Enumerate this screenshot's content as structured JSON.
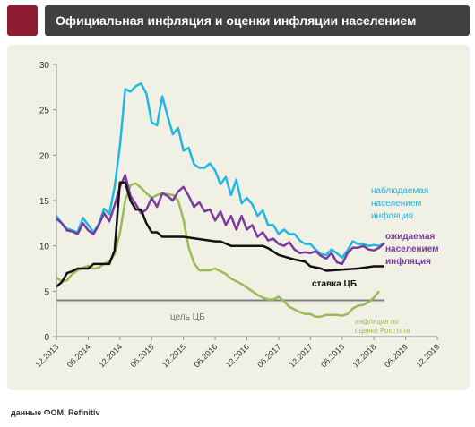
{
  "header": {
    "title": "Официальная инфляция и оценки инфляции населением"
  },
  "source": "данные ФОМ, Refinitiv",
  "colors": {
    "accent": "#8e1b2f",
    "header_bg": "#404040",
    "panel_bg": "#f1f0e4",
    "observed": "#22b6e0",
    "expected": "#7b3a9c",
    "rate": "#111111",
    "rosstat": "#9bbb59",
    "target": "#808080"
  },
  "chart_data": {
    "type": "line",
    "title": "Официальная инфляция и оценки инфляции населением",
    "ylim": [
      0,
      30
    ],
    "yticks": [
      0,
      5,
      10,
      15,
      20,
      25,
      30
    ],
    "xlim": [
      "2013-12",
      "2019-12"
    ],
    "xticks": [
      "12.2013",
      "06.2014",
      "12.2014",
      "06.2015",
      "12.2015",
      "06.2016",
      "12.2016",
      "06.2017",
      "12.2017",
      "06.2018",
      "12.2018",
      "06.2019",
      "12.2019"
    ],
    "grid": false,
    "series": [
      {
        "name": "наблюдаемая населением инфляция",
        "label": [
          "наблюдаемая",
          "населением",
          "инфляция"
        ],
        "color": "#22b6e0",
        "points": [
          [
            "2013-12",
            13.3
          ],
          [
            "2014-01",
            12.5
          ],
          [
            "2014-02",
            11.9
          ],
          [
            "2014-03",
            11.7
          ],
          [
            "2014-04",
            11.5
          ],
          [
            "2014-05",
            13.1
          ],
          [
            "2014-06",
            12.3
          ],
          [
            "2014-07",
            11.5
          ],
          [
            "2014-08",
            12.4
          ],
          [
            "2014-09",
            14.1
          ],
          [
            "2014-10",
            13.5
          ],
          [
            "2014-11",
            16.5
          ],
          [
            "2014-12",
            21.0
          ],
          [
            "2015-01",
            27.3
          ],
          [
            "2015-02",
            27.0
          ],
          [
            "2015-03",
            27.6
          ],
          [
            "2015-04",
            27.9
          ],
          [
            "2015-05",
            26.8
          ],
          [
            "2015-06",
            23.6
          ],
          [
            "2015-07",
            23.3
          ],
          [
            "2015-08",
            26.5
          ],
          [
            "2015-09",
            24.3
          ],
          [
            "2015-10",
            22.3
          ],
          [
            "2015-11",
            23.0
          ],
          [
            "2015-12",
            20.5
          ],
          [
            "2016-01",
            20.8
          ],
          [
            "2016-02",
            19.0
          ],
          [
            "2016-03",
            18.6
          ],
          [
            "2016-04",
            18.6
          ],
          [
            "2016-05",
            19.1
          ],
          [
            "2016-06",
            18.3
          ],
          [
            "2016-07",
            16.8
          ],
          [
            "2016-08",
            17.6
          ],
          [
            "2016-09",
            15.6
          ],
          [
            "2016-10",
            17.3
          ],
          [
            "2016-11",
            14.7
          ],
          [
            "2016-12",
            15.3
          ],
          [
            "2017-01",
            14.6
          ],
          [
            "2017-02",
            13.3
          ],
          [
            "2017-03",
            13.9
          ],
          [
            "2017-04",
            12.3
          ],
          [
            "2017-05",
            12.3
          ],
          [
            "2017-06",
            11.3
          ],
          [
            "2017-07",
            11.8
          ],
          [
            "2017-08",
            11.3
          ],
          [
            "2017-09",
            11.3
          ],
          [
            "2017-10",
            10.6
          ],
          [
            "2017-11",
            10.2
          ],
          [
            "2017-12",
            10.2
          ],
          [
            "2018-01",
            9.6
          ],
          [
            "2018-02",
            9.1
          ],
          [
            "2018-03",
            9.0
          ],
          [
            "2018-04",
            9.6
          ],
          [
            "2018-05",
            9.2
          ],
          [
            "2018-06",
            8.7
          ],
          [
            "2018-07",
            9.5
          ],
          [
            "2018-08",
            10.5
          ],
          [
            "2018-09",
            10.2
          ],
          [
            "2018-10",
            10.2
          ],
          [
            "2018-11",
            10.0
          ],
          [
            "2018-12",
            10.1
          ],
          [
            "2019-01",
            10.0
          ],
          [
            "2019-02",
            10.3
          ]
        ]
      },
      {
        "name": "ожидаемая населением инфляция",
        "label": [
          "ожидаемая",
          "населением",
          "инфляция"
        ],
        "color": "#7b3a9c",
        "points": [
          [
            "2013-12",
            13.0
          ],
          [
            "2014-01",
            12.5
          ],
          [
            "2014-02",
            11.7
          ],
          [
            "2014-03",
            11.6
          ],
          [
            "2014-04",
            11.3
          ],
          [
            "2014-05",
            12.5
          ],
          [
            "2014-06",
            11.7
          ],
          [
            "2014-07",
            11.3
          ],
          [
            "2014-08",
            12.3
          ],
          [
            "2014-09",
            13.6
          ],
          [
            "2014-10",
            12.7
          ],
          [
            "2014-11",
            14.5
          ],
          [
            "2014-12",
            16.5
          ],
          [
            "2015-01",
            17.8
          ],
          [
            "2015-02",
            15.5
          ],
          [
            "2015-03",
            14.6
          ],
          [
            "2015-04",
            13.6
          ],
          [
            "2015-05",
            14.0
          ],
          [
            "2015-06",
            15.3
          ],
          [
            "2015-07",
            14.3
          ],
          [
            "2015-08",
            15.8
          ],
          [
            "2015-09",
            15.5
          ],
          [
            "2015-10",
            15.0
          ],
          [
            "2015-11",
            16.0
          ],
          [
            "2015-12",
            16.5
          ],
          [
            "2016-01",
            15.5
          ],
          [
            "2016-02",
            14.3
          ],
          [
            "2016-03",
            14.8
          ],
          [
            "2016-04",
            13.8
          ],
          [
            "2016-05",
            14.0
          ],
          [
            "2016-06",
            12.8
          ],
          [
            "2016-07",
            13.8
          ],
          [
            "2016-08",
            12.3
          ],
          [
            "2016-09",
            13.3
          ],
          [
            "2016-10",
            11.8
          ],
          [
            "2016-11",
            13.3
          ],
          [
            "2016-12",
            11.8
          ],
          [
            "2017-01",
            12.3
          ],
          [
            "2017-02",
            11.0
          ],
          [
            "2017-03",
            11.5
          ],
          [
            "2017-04",
            10.6
          ],
          [
            "2017-05",
            10.8
          ],
          [
            "2017-06",
            10.2
          ],
          [
            "2017-07",
            10.0
          ],
          [
            "2017-08",
            10.4
          ],
          [
            "2017-09",
            9.6
          ],
          [
            "2017-10",
            9.2
          ],
          [
            "2017-11",
            9.3
          ],
          [
            "2017-12",
            9.2
          ],
          [
            "2018-01",
            9.4
          ],
          [
            "2018-02",
            8.9
          ],
          [
            "2018-03",
            8.6
          ],
          [
            "2018-04",
            9.2
          ],
          [
            "2018-05",
            8.2
          ],
          [
            "2018-06",
            8.0
          ],
          [
            "2018-07",
            9.2
          ],
          [
            "2018-08",
            9.8
          ],
          [
            "2018-09",
            9.8
          ],
          [
            "2018-10",
            10.0
          ],
          [
            "2018-11",
            9.6
          ],
          [
            "2018-12",
            9.5
          ],
          [
            "2019-01",
            9.8
          ],
          [
            "2019-02",
            10.3
          ]
        ]
      },
      {
        "name": "ставка ЦБ",
        "label": [
          "ставка ЦБ"
        ],
        "color": "#111111",
        "points": [
          [
            "2013-12",
            5.5
          ],
          [
            "2014-01",
            6.0
          ],
          [
            "2014-02",
            7.0
          ],
          [
            "2014-03",
            7.2
          ],
          [
            "2014-04",
            7.5
          ],
          [
            "2014-05",
            7.5
          ],
          [
            "2014-06",
            7.5
          ],
          [
            "2014-07",
            8.0
          ],
          [
            "2014-08",
            8.0
          ],
          [
            "2014-09",
            8.0
          ],
          [
            "2014-10",
            8.0
          ],
          [
            "2014-11",
            9.5
          ],
          [
            "2014-12",
            17.0
          ],
          [
            "2015-01",
            17.0
          ],
          [
            "2015-02",
            15.0
          ],
          [
            "2015-03",
            14.0
          ],
          [
            "2015-04",
            14.0
          ],
          [
            "2015-05",
            12.5
          ],
          [
            "2015-06",
            11.5
          ],
          [
            "2015-07",
            11.5
          ],
          [
            "2015-08",
            11.0
          ],
          [
            "2015-12",
            11.0
          ],
          [
            "2016-06",
            10.5
          ],
          [
            "2016-07",
            10.5
          ],
          [
            "2016-09",
            10.0
          ],
          [
            "2017-03",
            10.0
          ],
          [
            "2017-04",
            9.75
          ],
          [
            "2017-06",
            9.0
          ],
          [
            "2017-09",
            8.5
          ],
          [
            "2017-11",
            8.25
          ],
          [
            "2017-12",
            7.75
          ],
          [
            "2018-02",
            7.5
          ],
          [
            "2018-03",
            7.25
          ],
          [
            "2018-09",
            7.5
          ],
          [
            "2018-12",
            7.75
          ],
          [
            "2019-02",
            7.75
          ]
        ]
      },
      {
        "name": "инфляция по оценке Росстата",
        "label": [
          "инфляция по",
          "оценке Росстата"
        ],
        "color": "#9bbb59",
        "points": [
          [
            "2013-12",
            6.5
          ],
          [
            "2014-01",
            6.1
          ],
          [
            "2014-02",
            6.2
          ],
          [
            "2014-03",
            6.9
          ],
          [
            "2014-04",
            7.3
          ],
          [
            "2014-05",
            7.6
          ],
          [
            "2014-06",
            7.8
          ],
          [
            "2014-07",
            7.5
          ],
          [
            "2014-08",
            7.6
          ],
          [
            "2014-09",
            8.0
          ],
          [
            "2014-10",
            8.3
          ],
          [
            "2014-11",
            9.1
          ],
          [
            "2014-12",
            11.4
          ],
          [
            "2015-01",
            15.0
          ],
          [
            "2015-02",
            16.7
          ],
          [
            "2015-03",
            16.9
          ],
          [
            "2015-04",
            16.4
          ],
          [
            "2015-05",
            15.8
          ],
          [
            "2015-06",
            15.3
          ],
          [
            "2015-07",
            15.6
          ],
          [
            "2015-08",
            15.8
          ],
          [
            "2015-09",
            15.7
          ],
          [
            "2015-10",
            15.6
          ],
          [
            "2015-11",
            15.0
          ],
          [
            "2015-12",
            12.9
          ],
          [
            "2016-01",
            9.8
          ],
          [
            "2016-02",
            8.1
          ],
          [
            "2016-03",
            7.3
          ],
          [
            "2016-04",
            7.3
          ],
          [
            "2016-05",
            7.3
          ],
          [
            "2016-06",
            7.5
          ],
          [
            "2016-07",
            7.2
          ],
          [
            "2016-08",
            6.9
          ],
          [
            "2016-09",
            6.4
          ],
          [
            "2016-10",
            6.1
          ],
          [
            "2016-11",
            5.8
          ],
          [
            "2016-12",
            5.4
          ],
          [
            "2017-01",
            5.0
          ],
          [
            "2017-02",
            4.6
          ],
          [
            "2017-03",
            4.3
          ],
          [
            "2017-04",
            4.1
          ],
          [
            "2017-05",
            4.1
          ],
          [
            "2017-06",
            4.4
          ],
          [
            "2017-07",
            3.9
          ],
          [
            "2017-08",
            3.3
          ],
          [
            "2017-09",
            3.0
          ],
          [
            "2017-10",
            2.7
          ],
          [
            "2017-11",
            2.5
          ],
          [
            "2017-12",
            2.5
          ],
          [
            "2018-01",
            2.2
          ],
          [
            "2018-02",
            2.2
          ],
          [
            "2018-03",
            2.4
          ],
          [
            "2018-04",
            2.4
          ],
          [
            "2018-05",
            2.4
          ],
          [
            "2018-06",
            2.3
          ],
          [
            "2018-07",
            2.5
          ],
          [
            "2018-08",
            3.1
          ],
          [
            "2018-09",
            3.4
          ],
          [
            "2018-10",
            3.5
          ],
          [
            "2018-11",
            3.8
          ],
          [
            "2018-12",
            4.3
          ],
          [
            "2019-01",
            5.0
          ]
        ]
      },
      {
        "name": "цель ЦБ",
        "label": [
          "цель ЦБ"
        ],
        "color": "#808080",
        "points": [
          [
            "2013-12",
            4.0
          ],
          [
            "2019-02",
            4.0
          ]
        ]
      }
    ]
  }
}
